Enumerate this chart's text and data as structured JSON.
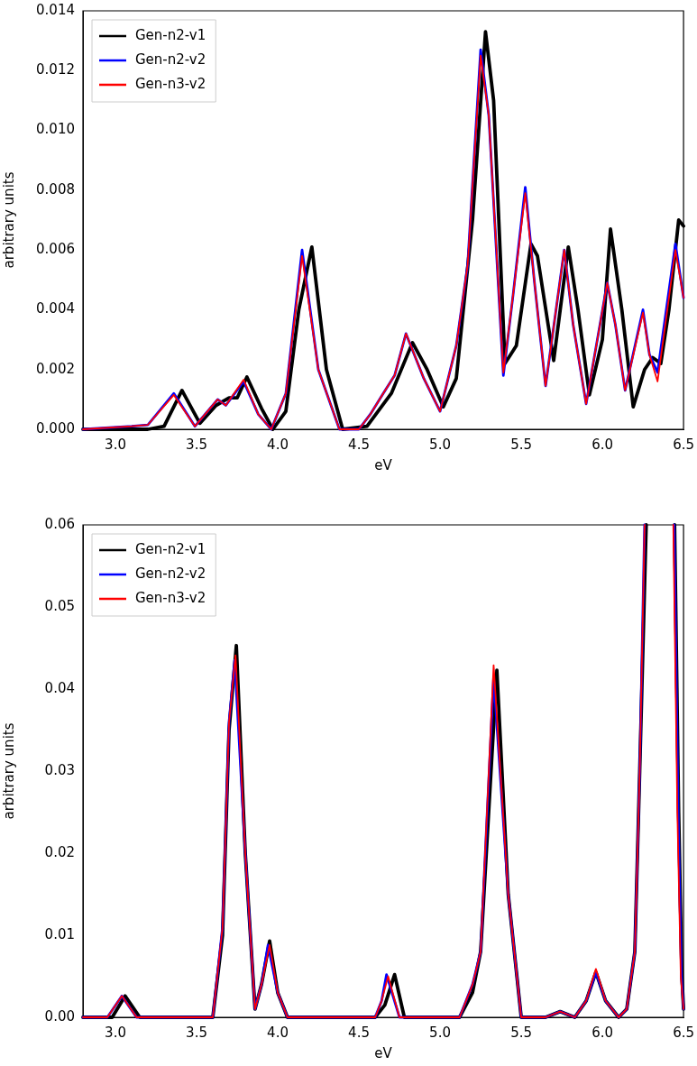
{
  "chart_data": [
    {
      "type": "line",
      "xlabel": "eV",
      "ylabel": "arbitrary units",
      "xlim": [
        2.8,
        6.5
      ],
      "ylim": [
        0,
        0.014
      ],
      "xticks": [
        {
          "value": 3,
          "label": "3.0"
        },
        {
          "value": 3.5,
          "label": "3.5"
        },
        {
          "value": 4,
          "label": "4.0"
        },
        {
          "value": 4.5,
          "label": "4.5"
        },
        {
          "value": 5,
          "label": "5.0"
        },
        {
          "value": 5.5,
          "label": "5.5"
        },
        {
          "value": 6,
          "label": "6.0"
        },
        {
          "value": 6.5,
          "label": "6.5"
        }
      ],
      "yticks": [
        {
          "value": 0,
          "label": "0.000"
        },
        {
          "value": 0.002,
          "label": "0.002"
        },
        {
          "value": 0.004,
          "label": "0.004"
        },
        {
          "value": 0.006,
          "label": "0.006"
        },
        {
          "value": 0.008,
          "label": "0.008"
        },
        {
          "value": 0.01,
          "label": "0.010"
        },
        {
          "value": 0.012,
          "label": "0.012"
        },
        {
          "value": 0.014,
          "label": "0.014"
        }
      ],
      "grid": false,
      "legend": "top left",
      "marker": "none",
      "line_style": "solid",
      "series": [
        {
          "name": "Gen-n2-v1",
          "color": "#000000",
          "x": [
            2.8,
            3.2,
            3.3,
            3.41,
            3.52,
            3.62,
            3.7,
            3.75,
            3.81,
            3.9,
            3.97,
            4.05,
            4.13,
            4.21,
            4.3,
            4.4,
            4.55,
            4.7,
            4.83,
            4.92,
            5.02,
            5.1,
            5.2,
            5.28,
            5.33,
            5.4,
            5.47,
            5.56,
            5.6,
            5.7,
            5.79,
            5.85,
            5.92,
            6.0,
            6.05,
            6.12,
            6.19,
            6.26,
            6.31,
            6.36,
            6.41,
            6.47,
            6.5
          ],
          "values": [
            0,
            0,
            0.0001,
            0.0013,
            0.0002,
            0.0008,
            0.00105,
            0.00105,
            0.00175,
            0.0007,
            0,
            0.0006,
            0.004,
            0.0061,
            0.002,
            0,
            0.0001,
            0.0012,
            0.0029,
            0.002,
            0.00075,
            0.0017,
            0.007,
            0.0133,
            0.011,
            0.0022,
            0.0028,
            0.0062,
            0.0058,
            0.0023,
            0.0061,
            0.004,
            0.00115,
            0.003,
            0.0067,
            0.004,
            0.00075,
            0.002,
            0.0024,
            0.0022,
            0.004,
            0.007,
            0.0068
          ]
        },
        {
          "name": "Gen-n2-v2",
          "color": "#0000ff",
          "x": [
            2.8,
            3.1,
            3.2,
            3.36,
            3.49,
            3.63,
            3.68,
            3.79,
            3.88,
            3.96,
            4.05,
            4.15,
            4.25,
            4.38,
            4.5,
            4.57,
            4.65,
            4.72,
            4.79,
            4.9,
            5.0,
            5.1,
            5.17,
            5.25,
            5.3,
            5.39,
            5.45,
            5.525,
            5.58,
            5.65,
            5.765,
            5.82,
            5.9,
            6.03,
            6.08,
            6.14,
            6.25,
            6.29,
            6.34,
            6.45,
            6.5
          ],
          "values": [
            0,
            0.0001,
            0.00015,
            0.0012,
            0.0001,
            0.001,
            0.0008,
            0.0016,
            0.0005,
            0,
            0.0012,
            0.006,
            0.002,
            0,
            0,
            0.0005,
            0.0012,
            0.0018,
            0.0032,
            0.0017,
            0.0006,
            0.0028,
            0.0055,
            0.0127,
            0.0105,
            0.0018,
            0.0045,
            0.0081,
            0.005,
            0.00145,
            0.006,
            0.0035,
            0.00085,
            0.0049,
            0.0035,
            0.0013,
            0.004,
            0.0025,
            0.0019,
            0.0062,
            0.0044
          ]
        },
        {
          "name": "Gen-n3-v2",
          "color": "#ff0000",
          "x": [
            2.8,
            3.1,
            3.2,
            3.36,
            3.49,
            3.63,
            3.68,
            3.79,
            3.88,
            3.96,
            4.05,
            4.15,
            4.25,
            4.38,
            4.5,
            4.57,
            4.65,
            4.72,
            4.79,
            4.9,
            5.0,
            5.1,
            5.17,
            5.25,
            5.3,
            5.39,
            5.45,
            5.525,
            5.58,
            5.65,
            5.765,
            5.82,
            5.9,
            6.03,
            6.08,
            6.14,
            6.25,
            6.29,
            6.34,
            6.45,
            6.5
          ],
          "values": [
            0,
            0.0001,
            0.00015,
            0.00115,
            0.0001,
            0.001,
            0.0008,
            0.00166,
            0.0005,
            0,
            0.0012,
            0.0058,
            0.002,
            0,
            0,
            0.0005,
            0.0012,
            0.0018,
            0.0032,
            0.0017,
            0.0006,
            0.0028,
            0.0055,
            0.0125,
            0.0105,
            0.0019,
            0.0045,
            0.0079,
            0.005,
            0.00145,
            0.006,
            0.0035,
            0.00085,
            0.0049,
            0.0035,
            0.0013,
            0.0039,
            0.0025,
            0.0016,
            0.006,
            0.0044
          ]
        }
      ]
    },
    {
      "type": "line",
      "xlabel": "eV",
      "ylabel": "arbitrary units",
      "xlim": [
        2.8,
        6.5
      ],
      "ylim": [
        0,
        0.06
      ],
      "xticks": [
        {
          "value": 3,
          "label": "3.0"
        },
        {
          "value": 3.5,
          "label": "3.5"
        },
        {
          "value": 4,
          "label": "4.0"
        },
        {
          "value": 4.5,
          "label": "4.5"
        },
        {
          "value": 5,
          "label": "5.0"
        },
        {
          "value": 5.5,
          "label": "5.5"
        },
        {
          "value": 6,
          "label": "6.0"
        },
        {
          "value": 6.5,
          "label": "6.5"
        }
      ],
      "yticks": [
        {
          "value": 0,
          "label": "0.00"
        },
        {
          "value": 0.01,
          "label": "0.01"
        },
        {
          "value": 0.02,
          "label": "0.02"
        },
        {
          "value": 0.03,
          "label": "0.03"
        },
        {
          "value": 0.04,
          "label": "0.04"
        },
        {
          "value": 0.05,
          "label": "0.05"
        },
        {
          "value": 0.06,
          "label": "0.06"
        }
      ],
      "grid": false,
      "legend": "top left",
      "marker": "none",
      "line_style": "solid",
      "series": [
        {
          "name": "Gen-n2-v1",
          "color": "#000000",
          "x": [
            2.8,
            2.98,
            3.06,
            3.15,
            3.6,
            3.66,
            3.7,
            3.745,
            3.8,
            3.86,
            3.9,
            3.95,
            4.0,
            4.06,
            4.6,
            4.66,
            4.72,
            4.78,
            5.12,
            5.2,
            5.25,
            5.35,
            5.42,
            5.5,
            5.65,
            5.74,
            5.83,
            5.9,
            5.96,
            6.02,
            6.1,
            6.15,
            6.2,
            6.23,
            6.27,
            6.35,
            6.445,
            6.47,
            6.49,
            6.5
          ],
          "values": [
            0,
            0,
            0.0026,
            0,
            0,
            0.01,
            0.035,
            0.0453,
            0.02,
            0.001,
            0.004,
            0.0093,
            0.003,
            0,
            0,
            0.0015,
            0.0052,
            0,
            0,
            0.003,
            0.008,
            0.0423,
            0.015,
            0,
            0,
            0.0007,
            0,
            0.002,
            0.0055,
            0.002,
            0,
            0.001,
            0.008,
            0.03,
            0.06,
            null,
            0.06,
            0.025,
            0.005,
            0.001
          ]
        },
        {
          "name": "Gen-n2-v2",
          "color": "#0000ff",
          "x": [
            2.8,
            2.95,
            3.04,
            3.13,
            3.6,
            3.66,
            3.7,
            3.735,
            3.8,
            3.86,
            3.9,
            3.94,
            4.0,
            4.06,
            4.6,
            4.64,
            4.67,
            4.75,
            5.12,
            5.2,
            5.25,
            5.33,
            5.42,
            5.5,
            5.65,
            5.74,
            5.83,
            5.9,
            5.96,
            6.02,
            6.1,
            6.15,
            6.2,
            6.23,
            6.26,
            6.35,
            6.442,
            6.467,
            6.487,
            6.5
          ],
          "values": [
            0,
            0,
            0.0026,
            0,
            0,
            0.011,
            0.036,
            0.0435,
            0.02,
            0.001,
            0.004,
            0.0088,
            0.003,
            0,
            0,
            0.002,
            0.0052,
            0,
            0,
            0.004,
            0.008,
            0.0415,
            0.015,
            0,
            0,
            0.0007,
            0,
            0.002,
            0.0055,
            0.002,
            0,
            0.001,
            0.008,
            0.03,
            0.06,
            null,
            0.06,
            0.025,
            0.005,
            0.001
          ]
        },
        {
          "name": "Gen-n3-v2",
          "color": "#ff0000",
          "x": [
            2.8,
            2.95,
            3.04,
            3.13,
            3.6,
            3.66,
            3.7,
            3.74,
            3.8,
            3.86,
            3.9,
            3.95,
            4.0,
            4.06,
            4.6,
            4.64,
            4.68,
            4.75,
            5.12,
            5.2,
            5.25,
            5.33,
            5.42,
            5.5,
            5.65,
            5.74,
            5.83,
            5.9,
            5.96,
            6.02,
            6.1,
            6.15,
            6.2,
            6.23,
            6.26,
            6.35,
            6.437,
            6.462,
            6.483,
            6.5
          ],
          "values": [
            0,
            0,
            0.0026,
            0,
            0,
            0.011,
            0.036,
            0.0441,
            0.02,
            0.001,
            0.004,
            0.0088,
            0.003,
            0,
            0,
            0.002,
            0.005,
            0,
            0,
            0.004,
            0.008,
            0.0429,
            0.015,
            0,
            0,
            0.0007,
            0,
            0.002,
            0.0059,
            0.002,
            0,
            0.001,
            0.008,
            0.03,
            0.06,
            null,
            0.06,
            0.025,
            0.005,
            0.001
          ]
        }
      ]
    }
  ]
}
